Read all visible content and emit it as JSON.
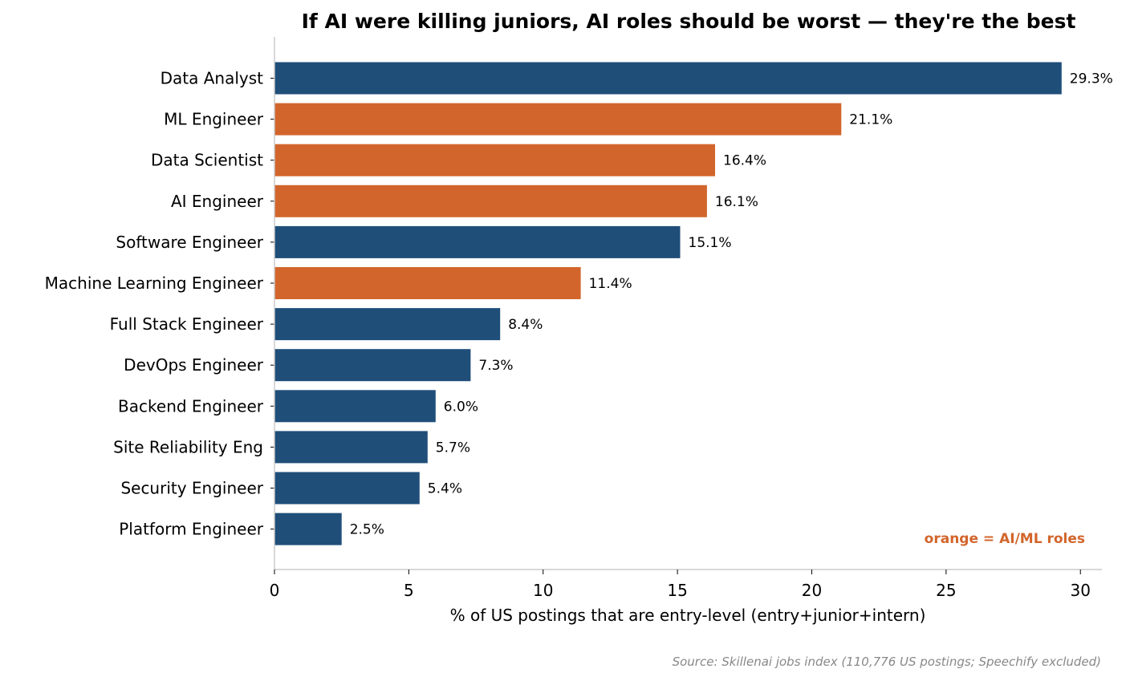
{
  "chart_data": {
    "type": "bar",
    "orientation": "horizontal",
    "title": "If AI were killing juniors, AI roles should be worst — they're the best",
    "xlabel": "% of US postings that are entry-level (entry+junior+intern)",
    "ylabel": "",
    "xlim": [
      0,
      30.8
    ],
    "xticks": [
      0,
      5,
      10,
      15,
      20,
      25,
      30
    ],
    "grid": false,
    "categories": [
      "Data Analyst",
      "ML Engineer",
      "Data Scientist",
      "AI Engineer",
      "Software Engineer",
      "Machine Learning Engineer",
      "Full Stack Engineer",
      "DevOps Engineer",
      "Backend Engineer",
      "Site Reliability Eng",
      "Security Engineer",
      "Platform Engineer"
    ],
    "values": [
      29.3,
      21.1,
      16.4,
      16.1,
      15.1,
      11.4,
      8.4,
      7.3,
      6.0,
      5.7,
      5.4,
      2.5
    ],
    "value_labels": [
      "29.3%",
      "21.1%",
      "16.4%",
      "16.1%",
      "15.1%",
      "11.4%",
      "8.4%",
      "7.3%",
      "6.0%",
      "5.7%",
      "5.4%",
      "2.5%"
    ],
    "groups": [
      "other",
      "ai",
      "ai",
      "ai",
      "other",
      "ai",
      "other",
      "other",
      "other",
      "other",
      "other",
      "other"
    ],
    "colors": {
      "other": "#1f4e79",
      "ai": "#d2652b",
      "axis": "#cccccc",
      "source": "#888888"
    },
    "annotation": "orange = AI/ML roles",
    "source": "Source: Skillenai jobs index (110,776 US postings; Speechify excluded)"
  }
}
